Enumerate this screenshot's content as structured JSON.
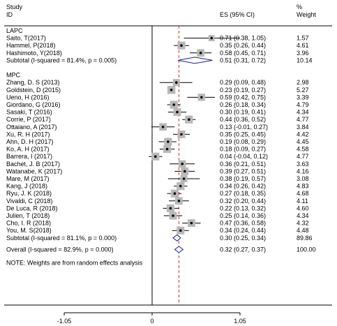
{
  "chart_data": {
    "type": "forest",
    "x_axis": {
      "ticks": [
        -1.05,
        0,
        1.05
      ],
      "tick_labels": [
        "-1.05",
        "0",
        "1.05"
      ],
      "range": [
        -1.05,
        1.05
      ],
      "reference_line": 0
    },
    "overall_estimate_line": 0.32,
    "headers": {
      "study_line1": "Study",
      "study_line2": "ID",
      "es": "ES (95% CI)",
      "weight_line1": "%",
      "weight_line2": "Weight"
    },
    "groups": [
      {
        "name": "LAPC",
        "studies": [
          {
            "study": "Saito, T(2017)",
            "es": 0.71,
            "lo": 0.38,
            "hi": 1.05,
            "es_label": "0.71 (0.38, 1.05)",
            "weight": "1.57"
          },
          {
            "study": "Hammel, P(2018)",
            "es": 0.35,
            "lo": 0.26,
            "hi": 0.44,
            "es_label": "0.35 (0.26, 0.44)",
            "weight": "4.61"
          },
          {
            "study": "Hashimoto, Y(2018)",
            "es": 0.58,
            "lo": 0.45,
            "hi": 0.71,
            "es_label": "0.58 (0.45, 0.71)",
            "weight": "3.96"
          }
        ],
        "subtotal": {
          "label": "Subtotal  (I-squared = 81.4%, p = 0.005)",
          "es": 0.51,
          "lo": 0.31,
          "hi": 0.72,
          "es_label": "0.51 (0.31, 0.72)",
          "weight": "10.14"
        }
      },
      {
        "name": "MPC",
        "studies": [
          {
            "study": "Zhang, D. S (2013)",
            "es": 0.29,
            "lo": 0.09,
            "hi": 0.48,
            "es_label": "0.29 (0.09, 0.48)",
            "weight": "2.98"
          },
          {
            "study": "Goldstein, D (2015)",
            "es": 0.23,
            "lo": 0.19,
            "hi": 0.27,
            "es_label": "0.23 (0.19, 0.27)",
            "weight": "5.27"
          },
          {
            "study": "Ueno, H (2016)",
            "es": 0.59,
            "lo": 0.42,
            "hi": 0.75,
            "es_label": "0.59 (0.42, 0.75)",
            "weight": "3.39"
          },
          {
            "study": "Giordano, G (2016)",
            "es": 0.26,
            "lo": 0.18,
            "hi": 0.34,
            "es_label": "0.26 (0.18, 0.34)",
            "weight": "4.79"
          },
          {
            "study": "Sasaki, T (2016)",
            "es": 0.3,
            "lo": 0.19,
            "hi": 0.41,
            "es_label": "0.30 (0.19, 0.41)",
            "weight": "4.34"
          },
          {
            "study": "Corrie, P (2017)",
            "es": 0.44,
            "lo": 0.36,
            "hi": 0.52,
            "es_label": "0.44 (0.36, 0.52)",
            "weight": "4.77"
          },
          {
            "study": "Ottaiano, A (2017)",
            "es": 0.13,
            "lo": -0.01,
            "hi": 0.27,
            "es_label": "0.13 (-0.01, 0.27)",
            "weight": "3.84"
          },
          {
            "study": "Xu, R. H (2017)",
            "es": 0.35,
            "lo": 0.25,
            "hi": 0.45,
            "es_label": "0.35 (0.25, 0.45)",
            "weight": "4.42"
          },
          {
            "study": "Ahn, D. H (2017)",
            "es": 0.19,
            "lo": 0.08,
            "hi": 0.29,
            "es_label": "0.19 (0.08, 0.29)",
            "weight": "4.45"
          },
          {
            "study": "Ko, A. H (2017)",
            "es": 0.18,
            "lo": 0.09,
            "hi": 0.27,
            "es_label": "0.18 (0.09, 0.27)",
            "weight": "4.58"
          },
          {
            "study": "Barrera, I (2017)",
            "es": 0.04,
            "lo": -0.04,
            "hi": 0.12,
            "es_label": "0.04 (-0.04, 0.12)",
            "weight": "4.77"
          },
          {
            "study": "Bachet, J. B (2017)",
            "es": 0.36,
            "lo": 0.21,
            "hi": 0.51,
            "es_label": "0.36 (0.21, 0.51)",
            "weight": "3.63"
          },
          {
            "study": "Watanabe, K (2017)",
            "es": 0.39,
            "lo": 0.27,
            "hi": 0.51,
            "es_label": "0.39 (0.27, 0.51)",
            "weight": "4.16"
          },
          {
            "study": "Mare, M (2017)",
            "es": 0.38,
            "lo": 0.19,
            "hi": 0.57,
            "es_label": "0.38 (0.19, 0.57)",
            "weight": "3.08"
          },
          {
            "study": "Kang, J (2018)",
            "es": 0.34,
            "lo": 0.26,
            "hi": 0.42,
            "es_label": "0.34 (0.26, 0.42)",
            "weight": "4.83"
          },
          {
            "study": "Ryu, J. K (2018)",
            "es": 0.27,
            "lo": 0.18,
            "hi": 0.35,
            "es_label": "0.27 (0.18, 0.35)",
            "weight": "4.68"
          },
          {
            "study": "Vivaldi, C (2018)",
            "es": 0.32,
            "lo": 0.2,
            "hi": 0.44,
            "es_label": "0.32 (0.20, 0.44)",
            "weight": "4.11"
          },
          {
            "study": "De Luca, R (2018)",
            "es": 0.22,
            "lo": 0.13,
            "hi": 0.32,
            "es_label": "0.22 (0.13, 0.32)",
            "weight": "4.60"
          },
          {
            "study": "Julien, T (2018)",
            "es": 0.25,
            "lo": 0.14,
            "hi": 0.36,
            "es_label": "0.25 (0.14, 0.36)",
            "weight": "4.34"
          },
          {
            "study": "Cho, I. R (2018)",
            "es": 0.47,
            "lo": 0.36,
            "hi": 0.58,
            "es_label": "0.47 (0.36, 0.58)",
            "weight": "4.32"
          },
          {
            "study": "You, M. S(2018)",
            "es": 0.34,
            "lo": 0.24,
            "hi": 0.44,
            "es_label": "0.34 (0.24, 0.44)",
            "weight": "4.48"
          }
        ],
        "subtotal": {
          "label": "Subtotal  (I-squared = 81.1%, p = 0.000)",
          "es": 0.3,
          "lo": 0.25,
          "hi": 0.34,
          "es_label": "0.30 (0.25, 0.34)",
          "weight": "89.86"
        }
      }
    ],
    "overall": {
      "label": "Overall  (I-squared = 82.9%, p = 0.000)",
      "es": 0.32,
      "lo": 0.27,
      "hi": 0.37,
      "es_label": "0.32 (0.27, 0.37)",
      "weight": "100.00"
    },
    "note": "NOTE: Weights are from random effects analysis"
  }
}
